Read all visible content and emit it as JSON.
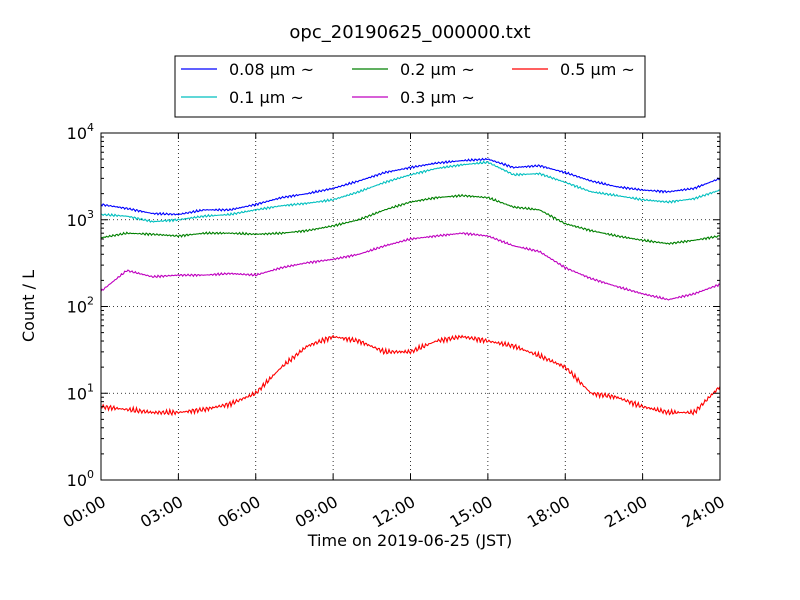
{
  "chart_data": {
    "type": "line",
    "title": "opc_20190625_000000.txt",
    "xlabel": "Time on 2019-06-25 (JST)",
    "ylabel": "Count / L",
    "yscale": "log",
    "xlim": [
      "00:00",
      "24:00"
    ],
    "ylim": [
      1,
      10000
    ],
    "grid": true,
    "legend_position": "top-center",
    "x_ticks": [
      "00:00",
      "03:00",
      "06:00",
      "09:00",
      "12:00",
      "15:00",
      "18:00",
      "21:00",
      "24:00"
    ],
    "y_ticks": [
      {
        "value": 1,
        "base": "10",
        "exp": "0"
      },
      {
        "value": 10,
        "base": "10",
        "exp": "1"
      },
      {
        "value": 100,
        "base": "10",
        "exp": "2"
      },
      {
        "value": 1000,
        "base": "10",
        "exp": "3"
      },
      {
        "value": 10000,
        "base": "10",
        "exp": "4"
      }
    ],
    "x": [
      "00:00",
      "01:00",
      "02:00",
      "03:00",
      "04:00",
      "05:00",
      "06:00",
      "07:00",
      "08:00",
      "09:00",
      "10:00",
      "11:00",
      "12:00",
      "13:00",
      "14:00",
      "15:00",
      "16:00",
      "17:00",
      "18:00",
      "19:00",
      "20:00",
      "21:00",
      "22:00",
      "23:00",
      "24:00"
    ],
    "series": [
      {
        "name": "0.08 μm ~",
        "color": "#0000ff",
        "values": [
          1500,
          1350,
          1180,
          1150,
          1300,
          1300,
          1500,
          1800,
          2000,
          2300,
          2800,
          3500,
          4000,
          4500,
          4800,
          5000,
          4000,
          4200,
          3500,
          2800,
          2400,
          2200,
          2100,
          2300,
          3000
        ]
      },
      {
        "name": "0.1 μm ~",
        "color": "#00bfbf",
        "values": [
          1150,
          1100,
          950,
          1000,
          1100,
          1150,
          1300,
          1450,
          1550,
          1700,
          2100,
          2700,
          3300,
          3900,
          4300,
          4600,
          3300,
          3400,
          2700,
          2100,
          1900,
          1700,
          1600,
          1750,
          2200
        ]
      },
      {
        "name": "0.2 μm ~",
        "color": "#008000",
        "values": [
          620,
          700,
          680,
          650,
          700,
          700,
          680,
          700,
          750,
          850,
          1000,
          1300,
          1600,
          1800,
          1900,
          1800,
          1400,
          1300,
          900,
          750,
          650,
          580,
          530,
          580,
          650
        ]
      },
      {
        "name": "0.3 μm ~",
        "color": "#bf00bf",
        "values": [
          150,
          260,
          220,
          230,
          230,
          240,
          230,
          280,
          320,
          350,
          400,
          500,
          600,
          650,
          700,
          650,
          500,
          430,
          280,
          210,
          170,
          140,
          120,
          140,
          180
        ]
      },
      {
        "name": "0.5 μm ~",
        "color": "#ff0000",
        "values": [
          7,
          6.5,
          6,
          6,
          6.5,
          7.5,
          10,
          20,
          35,
          45,
          40,
          30,
          30,
          40,
          45,
          40,
          35,
          27,
          20,
          10,
          9,
          7,
          6,
          6,
          12
        ]
      }
    ]
  }
}
